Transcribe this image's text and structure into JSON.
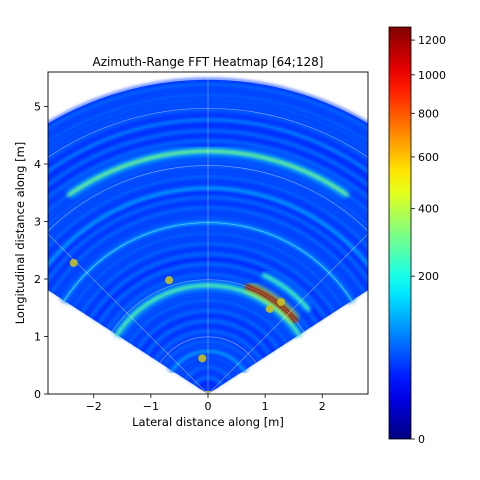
{
  "chart_data": {
    "type": "heatmap",
    "title": "Azimuth-Range FFT Heatmap [64;128]",
    "xlabel": "Lateral distance along [m]",
    "ylabel": "Longitudinal distance along [m]",
    "xlim": [
      -2.8,
      2.8
    ],
    "ylim": [
      0,
      5.6
    ],
    "xticks": [
      -2,
      -1,
      0,
      1,
      2
    ],
    "yticks": [
      0,
      1,
      2,
      3,
      4,
      5
    ],
    "fov_half_angle_deg": 57,
    "max_range_m": 5.5,
    "range_rings_m": [
      1,
      2,
      3,
      4,
      5
    ],
    "angle_lines_deg": [
      -45,
      0,
      45
    ],
    "colormap": "jet",
    "colorbar": {
      "scale": "sqrt",
      "min": 0,
      "max": 1280,
      "ticks": [
        0,
        200,
        400,
        600,
        800,
        1000,
        1200
      ]
    },
    "intensity_features": [
      {
        "kind": "arc",
        "range_m": 0.05,
        "from_deg": -60,
        "to_deg": 60,
        "value": 650
      },
      {
        "kind": "arc",
        "range_m": 0.75,
        "from_deg": -57,
        "to_deg": 57,
        "value": 110
      },
      {
        "kind": "arc",
        "range_m": 1.9,
        "from_deg": -57,
        "to_deg": 57,
        "value": 280
      },
      {
        "kind": "arc",
        "range_m": 2.0,
        "from_deg": 20,
        "to_deg": 50,
        "value": 1280
      },
      {
        "kind": "arc",
        "range_m": 2.3,
        "from_deg": 25,
        "to_deg": 50,
        "value": 260
      },
      {
        "kind": "arc",
        "range_m": 3.0,
        "from_deg": -57,
        "to_deg": 57,
        "value": 120
      },
      {
        "kind": "arc",
        "range_m": 3.6,
        "from_deg": -57,
        "to_deg": 57,
        "value": 110
      },
      {
        "kind": "arc",
        "range_m": 4.25,
        "from_deg": -35,
        "to_deg": 35,
        "value": 320
      },
      {
        "kind": "arc",
        "range_m": 4.8,
        "from_deg": -57,
        "to_deg": 57,
        "value": 90
      }
    ],
    "detections": [
      {
        "x": -2.35,
        "y": 2.28
      },
      {
        "x": -0.68,
        "y": 1.98
      },
      {
        "x": 1.28,
        "y": 1.6
      },
      {
        "x": 1.08,
        "y": 1.48
      },
      {
        "x": -0.1,
        "y": 0.62
      }
    ],
    "detection_color": "#c8c020"
  }
}
